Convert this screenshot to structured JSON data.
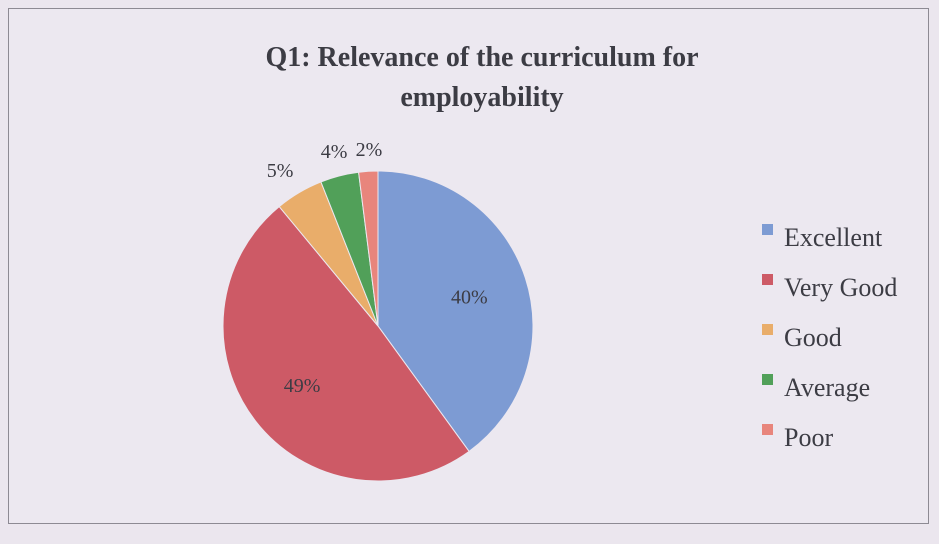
{
  "chart_data": {
    "type": "pie",
    "title_lines": [
      "Q1: Relevance of the curriculum for",
      "employability"
    ],
    "categories": [
      "Excellent",
      "Very Good",
      "Good",
      "Average",
      "Poor"
    ],
    "values": [
      40,
      49,
      5,
      4,
      2
    ],
    "value_labels": [
      "40%",
      "49%",
      "5%",
      "4%",
      "2%"
    ],
    "colors": [
      "#7d9bd3",
      "#cd5a66",
      "#e9ad6a",
      "#51a059",
      "#e8857c"
    ],
    "legend_position": "right"
  }
}
